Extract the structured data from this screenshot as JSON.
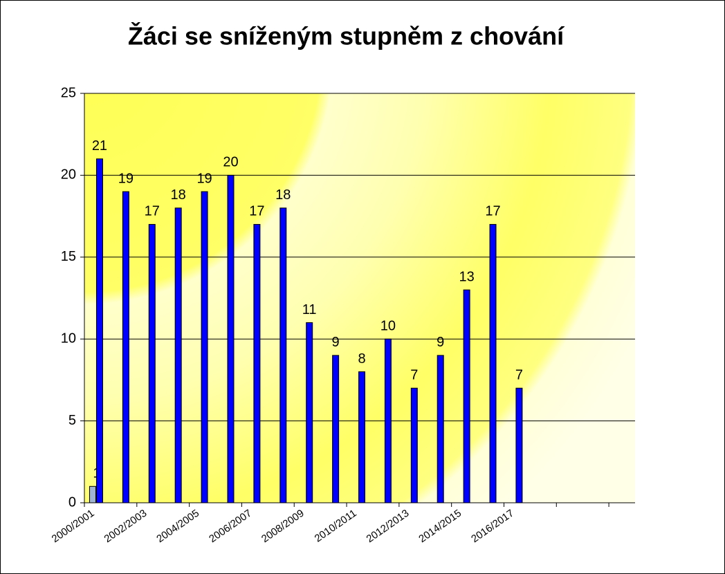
{
  "chart_data": {
    "type": "bar",
    "title": "Žáci se sníženým stupněm z chování",
    "categories": [
      "2000/2001",
      null,
      "2002/2003",
      null,
      "2004/2005",
      null,
      "2006/2007",
      null,
      "2008/2009",
      null,
      "2010/2011",
      null,
      "2012/2013",
      null,
      "2014/2015",
      null,
      "2016/2017",
      null,
      null,
      null,
      null
    ],
    "series": [
      {
        "color": "#a0b4d4",
        "values": [
          1,
          null,
          null,
          null,
          null,
          null,
          null,
          null,
          null,
          null,
          null,
          null,
          null,
          null,
          null,
          null,
          null,
          null,
          null,
          null,
          null
        ]
      },
      {
        "color": "#0000ff",
        "values": [
          21,
          19,
          17,
          18,
          19,
          20,
          17,
          18,
          11,
          9,
          8,
          10,
          7,
          9,
          13,
          17,
          7,
          null,
          null,
          null,
          null
        ]
      }
    ],
    "ylim": [
      0,
      25
    ],
    "yticks": [
      0,
      5,
      10,
      15,
      20,
      25
    ],
    "grid": true
  }
}
